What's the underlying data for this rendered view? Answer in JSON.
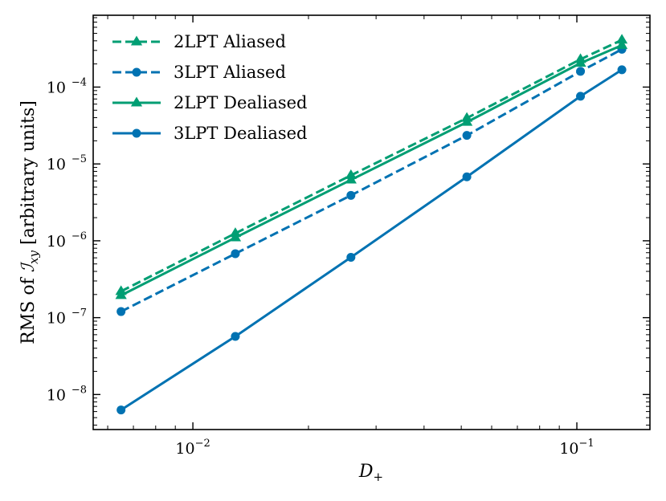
{
  "chart_data": {
    "type": "line",
    "title": "",
    "xlabel": "D",
    "xlabel_sub": "+",
    "ylabel_prefix": "RMS of ",
    "ylabel_symbol": "ℐ",
    "ylabel_sub": "xy",
    "ylabel_suffix": " [arbitrary units]",
    "xscale": "log",
    "yscale": "log",
    "xlim": [
      0.0055,
      0.155
    ],
    "ylim": [
      3.5e-09,
      0.00086
    ],
    "x": [
      0.0065,
      0.0129,
      0.0258,
      0.0517,
      0.1022,
      0.131
    ],
    "x_ticks": [
      {
        "value": 0.01,
        "base": "10",
        "exp": "−2"
      },
      {
        "value": 0.1,
        "base": "10",
        "exp": "−1"
      }
    ],
    "y_ticks": [
      {
        "value": 1e-08,
        "base": "10",
        "exp": "−8"
      },
      {
        "value": 1e-07,
        "base": "10",
        "exp": "−7"
      },
      {
        "value": 1e-06,
        "base": "10",
        "exp": "−6"
      },
      {
        "value": 1e-05,
        "base": "10",
        "exp": "−5"
      },
      {
        "value": 0.0001,
        "base": "10",
        "exp": "−4"
      }
    ],
    "legend_position": "top-left",
    "series": [
      {
        "name": "2LPT Aliased",
        "color": "#009e73",
        "linestyle": "dashed",
        "marker": "triangle",
        "values": [
          2.2e-07,
          1.25e-06,
          7.1e-06,
          3.95e-05,
          0.00023,
          0.00041
        ]
      },
      {
        "name": "3LPT Aliased",
        "color": "#0072b2",
        "linestyle": "dashed",
        "marker": "circle",
        "values": [
          1.2e-07,
          6.8e-07,
          3.9e-06,
          2.35e-05,
          0.00016,
          0.00031
        ]
      },
      {
        "name": "2LPT Dealiased",
        "color": "#009e73",
        "linestyle": "solid",
        "marker": "triangle",
        "values": [
          1.95e-07,
          1.1e-06,
          6.2e-06,
          3.5e-05,
          0.000205,
          0.00035
        ]
      },
      {
        "name": "3LPT Dealiased",
        "color": "#0072b2",
        "linestyle": "solid",
        "marker": "circle",
        "values": [
          6.3e-09,
          5.7e-08,
          6.1e-07,
          6.8e-06,
          7.6e-05,
          0.000168
        ]
      }
    ]
  }
}
